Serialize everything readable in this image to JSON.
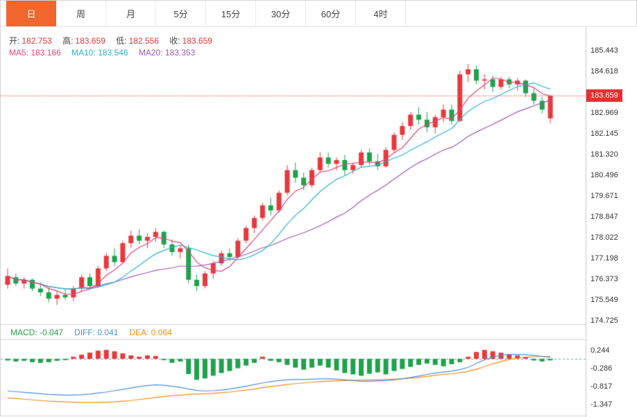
{
  "toolbar": {
    "tabs": [
      {
        "label": "日",
        "active": true
      },
      {
        "label": "周",
        "active": false
      },
      {
        "label": "月",
        "active": false
      },
      {
        "label": "5分",
        "active": false
      },
      {
        "label": "15分",
        "active": false
      },
      {
        "label": "30分",
        "active": false
      },
      {
        "label": "60分",
        "active": false
      },
      {
        "label": "4时",
        "active": false
      }
    ]
  },
  "legend": {
    "open_label": "开:",
    "open": "182.753",
    "high_label": "高:",
    "high": "183.659",
    "low_label": "低:",
    "low": "182.556",
    "close_label": "收:",
    "close": "183.659",
    "ma5_label": "MA5:",
    "ma5": "183.166",
    "ma10_label": "MA10:",
    "ma10": "183.546",
    "ma20_label": "MA20:",
    "ma20": "183.353"
  },
  "macd_header": {
    "macd_label": "MACD:",
    "macd": "-0.047",
    "diff_label": "DIFF:",
    "diff": "0.041",
    "dea_label": "DEA:",
    "dea": "0.064"
  },
  "price_axis_labels": [
    "185.443",
    "184.618",
    "182.969",
    "182.145",
    "181.320",
    "180.496",
    "179.671",
    "178.847",
    "178.022",
    "177.198",
    "176.373",
    "175.549",
    "174.725"
  ],
  "macd_axis_labels": [
    "0.244",
    "-0.286",
    "-0.817",
    "-1.347"
  ],
  "current_price_tag": "183.659",
  "colors": {
    "up": "#e8393d",
    "down": "#1fa24c",
    "ma5": "#e0457b",
    "ma10": "#2ab5c8",
    "ma20": "#9b59b6",
    "diff": "#4a90d9",
    "dea": "#f08c1e",
    "zero": "#35c0cf",
    "tab_active": "#f0662c",
    "price_line": "#ff5252",
    "tag_bg": "#e53030"
  },
  "chart_data": {
    "type": "candlestick",
    "timeframe": "日",
    "price_ylim": [
      174.588,
      186.377
    ],
    "macd_ylim": [
      -1.715,
      0.55
    ],
    "ma_periods": [
      5,
      10,
      20
    ],
    "ma_last_values": {
      "ma5": 183.166,
      "ma10": 183.546,
      "ma20": 183.353
    },
    "ohlc_last": {
      "open": 182.753,
      "high": 183.659,
      "low": 182.556,
      "close": 183.659
    },
    "candles": [
      [
        176.15,
        176.8,
        176.0,
        176.5
      ],
      [
        176.45,
        176.6,
        176.1,
        176.2
      ],
      [
        176.2,
        176.45,
        176.0,
        176.35
      ],
      [
        176.35,
        176.4,
        175.9,
        176.0
      ],
      [
        176.0,
        176.25,
        175.7,
        175.85
      ],
      [
        175.85,
        176.05,
        175.45,
        175.6
      ],
      [
        175.6,
        175.9,
        175.35,
        175.75
      ],
      [
        175.75,
        175.95,
        175.55,
        175.65
      ],
      [
        175.65,
        176.1,
        175.5,
        176.0
      ],
      [
        176.0,
        176.55,
        175.9,
        176.45
      ],
      [
        176.45,
        176.6,
        175.95,
        176.1
      ],
      [
        176.1,
        176.9,
        176.05,
        176.8
      ],
      [
        176.8,
        177.4,
        176.7,
        177.3
      ],
      [
        177.3,
        177.6,
        176.9,
        177.05
      ],
      [
        177.05,
        177.9,
        177.0,
        177.8
      ],
      [
        177.8,
        178.3,
        177.6,
        178.1
      ],
      [
        178.1,
        178.35,
        177.75,
        177.9
      ],
      [
        177.9,
        178.2,
        177.6,
        178.05
      ],
      [
        178.05,
        178.4,
        177.85,
        178.25
      ],
      [
        178.25,
        178.3,
        177.6,
        177.75
      ],
      [
        177.75,
        177.95,
        177.3,
        177.45
      ],
      [
        177.45,
        177.7,
        177.2,
        177.6
      ],
      [
        177.6,
        177.75,
        176.2,
        176.35
      ],
      [
        176.35,
        176.55,
        175.9,
        176.1
      ],
      [
        176.1,
        176.7,
        176.0,
        176.6
      ],
      [
        176.6,
        177.1,
        176.4,
        177.0
      ],
      [
        177.0,
        177.5,
        176.9,
        177.4
      ],
      [
        177.4,
        177.6,
        177.1,
        177.25
      ],
      [
        177.25,
        178.0,
        177.2,
        177.9
      ],
      [
        177.9,
        178.5,
        177.8,
        178.4
      ],
      [
        178.4,
        178.9,
        178.2,
        178.8
      ],
      [
        178.8,
        179.4,
        178.7,
        179.3
      ],
      [
        179.3,
        179.6,
        178.9,
        179.1
      ],
      [
        179.1,
        179.9,
        179.0,
        179.8
      ],
      [
        179.8,
        180.9,
        179.7,
        180.7
      ],
      [
        180.7,
        181.0,
        180.2,
        180.4
      ],
      [
        180.4,
        180.6,
        179.9,
        180.1
      ],
      [
        180.1,
        180.8,
        180.0,
        180.7
      ],
      [
        180.7,
        181.4,
        180.6,
        181.2
      ],
      [
        181.2,
        181.4,
        180.8,
        180.95
      ],
      [
        180.95,
        181.2,
        180.7,
        181.1
      ],
      [
        181.1,
        181.3,
        180.5,
        180.7
      ],
      [
        180.7,
        181.0,
        180.55,
        180.9
      ],
      [
        180.9,
        181.5,
        180.8,
        181.4
      ],
      [
        181.4,
        181.55,
        180.9,
        181.05
      ],
      [
        181.05,
        181.35,
        180.7,
        180.85
      ],
      [
        180.85,
        181.6,
        180.8,
        181.5
      ],
      [
        181.5,
        182.2,
        181.4,
        182.1
      ],
      [
        182.1,
        182.6,
        181.9,
        182.45
      ],
      [
        182.45,
        183.0,
        182.3,
        182.9
      ],
      [
        182.9,
        183.2,
        182.5,
        182.7
      ],
      [
        182.7,
        183.0,
        182.2,
        182.4
      ],
      [
        182.4,
        182.9,
        182.15,
        182.8
      ],
      [
        182.8,
        183.3,
        182.6,
        183.1
      ],
      [
        183.1,
        183.3,
        182.5,
        182.65
      ],
      [
        182.65,
        184.65,
        182.6,
        184.5
      ],
      [
        184.5,
        184.9,
        184.2,
        184.7
      ],
      [
        184.7,
        184.85,
        184.1,
        184.25
      ],
      [
        184.25,
        184.5,
        183.9,
        184.3
      ],
      [
        184.3,
        184.45,
        183.8,
        184.0
      ],
      [
        184.0,
        184.4,
        183.9,
        184.3
      ],
      [
        184.3,
        184.4,
        183.95,
        184.1
      ],
      [
        184.1,
        184.35,
        183.85,
        184.25
      ],
      [
        184.25,
        184.3,
        183.6,
        183.75
      ],
      [
        183.75,
        183.95,
        183.3,
        183.45
      ],
      [
        183.45,
        183.6,
        182.95,
        183.1
      ],
      [
        182.753,
        183.659,
        182.556,
        183.659
      ]
    ],
    "macd": {
      "last": {
        "macd": -0.047,
        "diff": 0.041,
        "dea": 0.064
      },
      "hist": [
        -0.05,
        -0.08,
        -0.06,
        -0.1,
        -0.12,
        -0.1,
        -0.06,
        -0.04,
        0.06,
        0.12,
        0.18,
        0.24,
        0.26,
        0.22,
        0.16,
        0.1,
        0.06,
        0.1,
        0.08,
        -0.04,
        -0.12,
        -0.08,
        -0.45,
        -0.62,
        -0.58,
        -0.5,
        -0.42,
        -0.36,
        -0.28,
        -0.2,
        -0.12,
        0.06,
        -0.06,
        -0.1,
        -0.18,
        -0.26,
        -0.32,
        -0.26,
        -0.2,
        -0.26,
        -0.34,
        -0.42,
        -0.46,
        -0.5,
        -0.44,
        -0.4,
        -0.46,
        -0.36,
        -0.3,
        -0.24,
        -0.18,
        -0.14,
        -0.18,
        -0.22,
        -0.16,
        -0.1,
        0.06,
        0.2,
        0.26,
        0.22,
        0.18,
        0.14,
        0.1,
        0.06,
        -0.05,
        -0.08,
        -0.047
      ],
      "diff": [
        -0.95,
        -0.97,
        -0.99,
        -1.01,
        -1.03,
        -1.05,
        -1.06,
        -1.07,
        -1.07,
        -1.06,
        -1.04,
        -1.01,
        -0.98,
        -0.94,
        -0.9,
        -0.86,
        -0.82,
        -0.79,
        -0.77,
        -0.78,
        -0.81,
        -0.84,
        -0.89,
        -0.93,
        -0.95,
        -0.94,
        -0.92,
        -0.89,
        -0.85,
        -0.81,
        -0.76,
        -0.71,
        -0.67,
        -0.64,
        -0.62,
        -0.61,
        -0.61,
        -0.6,
        -0.59,
        -0.59,
        -0.6,
        -0.62,
        -0.64,
        -0.66,
        -0.66,
        -0.65,
        -0.64,
        -0.62,
        -0.59,
        -0.55,
        -0.51,
        -0.46,
        -0.42,
        -0.39,
        -0.36,
        -0.32,
        -0.25,
        -0.14,
        -0.03,
        0.05,
        0.1,
        0.13,
        0.13,
        0.12,
        0.1,
        0.07,
        0.041
      ],
      "dea": [
        -1.15,
        -1.17,
        -1.19,
        -1.21,
        -1.23,
        -1.25,
        -1.26,
        -1.27,
        -1.28,
        -1.29,
        -1.29,
        -1.29,
        -1.28,
        -1.27,
        -1.25,
        -1.23,
        -1.2,
        -1.17,
        -1.14,
        -1.11,
        -1.09,
        -1.07,
        -1.05,
        -1.04,
        -1.03,
        -1.02,
        -1.0,
        -0.98,
        -0.95,
        -0.92,
        -0.89,
        -0.85,
        -0.82,
        -0.79,
        -0.76,
        -0.73,
        -0.71,
        -0.69,
        -0.67,
        -0.66,
        -0.65,
        -0.64,
        -0.63,
        -0.63,
        -0.62,
        -0.62,
        -0.61,
        -0.6,
        -0.59,
        -0.57,
        -0.55,
        -0.52,
        -0.49,
        -0.46,
        -0.44,
        -0.41,
        -0.37,
        -0.31,
        -0.23,
        -0.15,
        -0.08,
        -0.02,
        0.02,
        0.05,
        0.06,
        0.07,
        0.064
      ]
    }
  }
}
